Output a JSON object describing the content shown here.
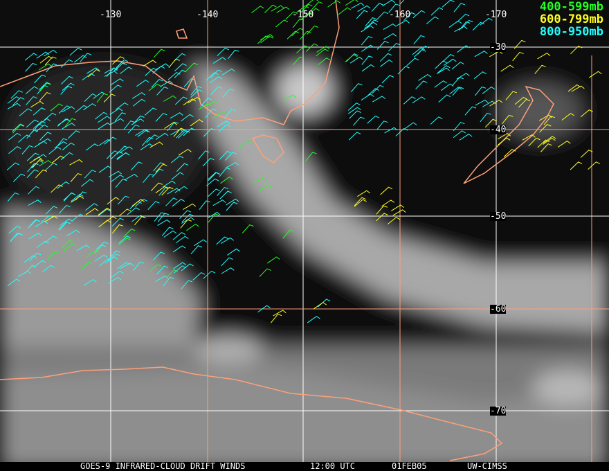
{
  "map": {
    "longitude_labels": [
      "-130",
      "-140",
      "-150",
      "-160",
      "-170"
    ],
    "latitude_labels": [
      "-30",
      "-40",
      "-50",
      "-60",
      "-70"
    ],
    "legend": [
      {
        "label": "400-599mb",
        "color": "#22ff22"
      },
      {
        "label": "600-799mb",
        "color": "#ffff22"
      },
      {
        "label": "800-950mb",
        "color": "#22ffff"
      }
    ],
    "coastline_color": "#ffa07a",
    "grid_colors": [
      "#ffffff",
      "#ffa07a"
    ]
  },
  "footer": {
    "product": "GOES-9 INFRARED-CLOUD DRIFT WINDS",
    "time": "12:00 UTC",
    "date": "01FEB05",
    "source": "UW-CIMSS"
  }
}
